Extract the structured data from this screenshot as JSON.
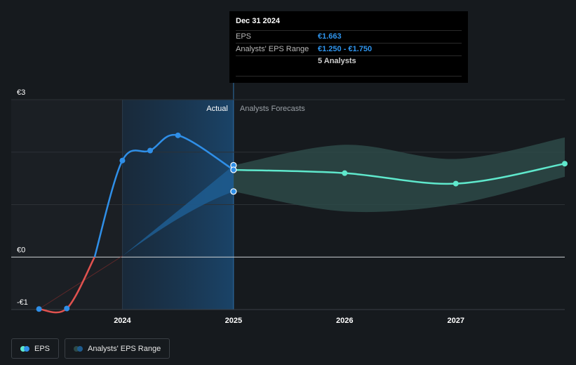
{
  "tooltip": {
    "date": "Dec 31 2024",
    "eps_label": "EPS",
    "eps_value": "€1.663",
    "range_label": "Analysts' EPS Range",
    "range_value": "€1.250 - €1.750",
    "analysts": "5 Analysts"
  },
  "regions": {
    "actual": "Actual",
    "forecast": "Analysts Forecasts"
  },
  "legend": {
    "eps": "EPS",
    "range": "Analysts' EPS Range"
  },
  "colors": {
    "background": "#161a1e",
    "eps_actual": "#2f8fe8",
    "eps_negative": "#e0524f",
    "eps_forecast": "#5fe8cc",
    "range_past": "#1e5b8e",
    "range_forecast": "#2d4a48"
  },
  "chart_data": {
    "type": "line",
    "y_ticks": [
      "€3",
      "€0",
      "-€1"
    ],
    "x_ticks": [
      "2024",
      "2025",
      "2026",
      "2027"
    ],
    "ylim": [
      -1,
      3
    ],
    "xlim": [
      2023.0,
      2027.98
    ],
    "grid": true,
    "series": [
      {
        "name": "EPS",
        "points": [
          {
            "x": 2023.25,
            "y": -0.99
          },
          {
            "x": 2023.5,
            "y": -0.98
          },
          {
            "x": 2023.75,
            "y": 0.0
          },
          {
            "x": 2024.0,
            "y": 1.84
          },
          {
            "x": 2024.25,
            "y": 2.03
          },
          {
            "x": 2024.5,
            "y": 2.32
          },
          {
            "x": 2025.0,
            "y": 1.663
          },
          {
            "x": 2026.0,
            "y": 1.6
          },
          {
            "x": 2027.0,
            "y": 1.4
          },
          {
            "x": 2027.98,
            "y": 1.78
          }
        ]
      },
      {
        "name": "Analysts' EPS Range",
        "points": [
          {
            "x": 2024.0,
            "low": 0.02,
            "high": 0.02
          },
          {
            "x": 2025.0,
            "low": 1.25,
            "high": 1.75
          },
          {
            "x": 2026.0,
            "low": 0.87,
            "high": 2.14
          },
          {
            "x": 2027.0,
            "low": 1.01,
            "high": 1.87
          },
          {
            "x": 2027.98,
            "low": 1.53,
            "high": 2.28
          }
        ]
      }
    ]
  }
}
